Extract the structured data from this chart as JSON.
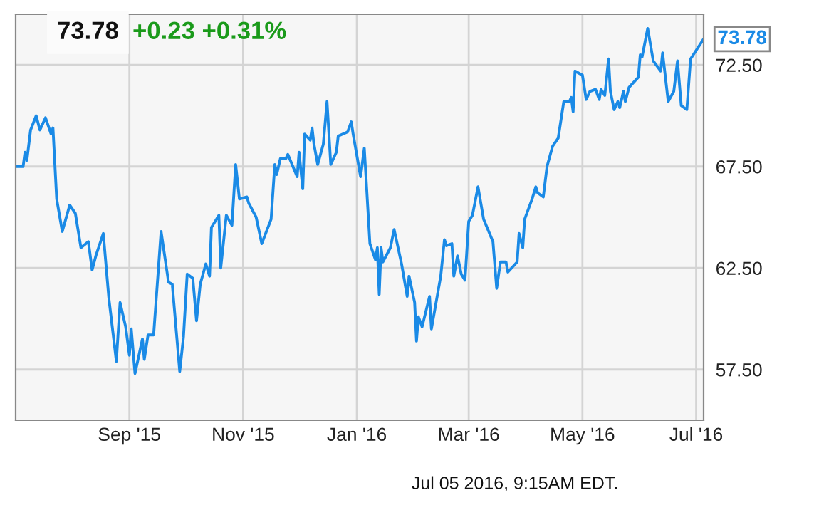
{
  "chart_data": {
    "type": "line",
    "title": "73.78",
    "subtitle": "+0.23 +0.31%",
    "x": [
      "2015-07-02",
      "2015-07-06",
      "2015-07-07",
      "2015-07-08",
      "2015-07-10",
      "2015-07-13",
      "2015-07-15",
      "2015-07-18",
      "2015-07-21",
      "2015-07-22",
      "2015-07-24",
      "2015-07-27",
      "2015-07-31",
      "2015-08-03",
      "2015-08-06",
      "2015-08-10",
      "2015-08-12",
      "2015-08-14",
      "2015-08-18",
      "2015-08-21",
      "2015-08-25",
      "2015-08-27",
      "2015-08-30",
      "2015-09-01",
      "2015-09-02",
      "2015-09-04",
      "2015-09-08",
      "2015-09-09",
      "2015-09-11",
      "2015-09-14",
      "2015-09-18",
      "2015-09-22",
      "2015-09-24",
      "2015-09-28",
      "2015-09-30",
      "2015-10-02",
      "2015-10-05",
      "2015-10-07",
      "2015-10-09",
      "2015-10-12",
      "2015-10-14",
      "2015-10-15",
      "2015-10-19",
      "2015-10-20",
      "2015-10-23",
      "2015-10-26",
      "2015-10-28",
      "2015-10-30",
      "2015-11-03",
      "2015-11-04",
      "2015-11-08",
      "2015-11-11",
      "2015-11-16",
      "2015-11-18",
      "2015-11-19",
      "2015-11-21",
      "2015-11-24",
      "2015-11-25",
      "2015-11-30",
      "2015-12-01",
      "2015-12-03",
      "2015-12-04",
      "2015-12-07",
      "2015-12-08",
      "2015-12-09",
      "2015-12-11",
      "2015-12-14",
      "2015-12-16",
      "2015-12-18",
      "2015-12-21",
      "2015-12-22",
      "2015-12-27",
      "2015-12-29",
      "2015-12-30",
      "2016-01-03",
      "2016-01-05",
      "2016-01-08",
      "2016-01-11",
      "2016-01-12",
      "2016-01-13",
      "2016-01-14",
      "2016-01-15",
      "2016-01-19",
      "2016-01-21",
      "2016-01-25",
      "2016-01-28",
      "2016-01-29",
      "2016-02-01",
      "2016-02-02",
      "2016-02-03",
      "2016-02-05",
      "2016-02-09",
      "2016-02-10",
      "2016-02-15",
      "2016-02-17",
      "2016-02-18",
      "2016-02-21",
      "2016-02-22",
      "2016-02-24",
      "2016-02-26",
      "2016-02-28",
      "2016-03-01",
      "2016-03-03",
      "2016-03-06",
      "2016-03-09",
      "2016-03-14",
      "2016-03-16",
      "2016-03-18",
      "2016-03-21",
      "2016-03-22",
      "2016-03-27",
      "2016-03-28",
      "2016-03-30",
      "2016-03-31",
      "2016-04-04",
      "2016-04-06",
      "2016-04-07",
      "2016-04-10",
      "2016-04-12",
      "2016-04-15",
      "2016-04-18",
      "2016-04-21",
      "2016-04-24",
      "2016-04-25",
      "2016-04-26",
      "2016-04-27",
      "2016-05-01",
      "2016-05-03",
      "2016-05-05",
      "2016-05-08",
      "2016-05-10",
      "2016-05-11",
      "2016-05-13",
      "2016-05-15",
      "2016-05-16",
      "2016-05-18",
      "2016-05-20",
      "2016-05-21",
      "2016-05-23",
      "2016-05-24",
      "2016-05-26",
      "2016-05-31",
      "2016-06-01",
      "2016-06-02",
      "2016-06-05",
      "2016-06-08",
      "2016-06-12",
      "2016-06-13",
      "2016-06-16",
      "2016-06-19",
      "2016-06-21",
      "2016-06-23",
      "2016-06-26",
      "2016-06-28",
      "2016-07-05"
    ],
    "series": [
      {
        "color": "#1a8ae6",
        "values": [
          67.5,
          67.5,
          68.2,
          67.8,
          69.3,
          70.0,
          69.3,
          69.9,
          69.1,
          69.4,
          65.9,
          64.3,
          65.6,
          65.2,
          63.5,
          63.8,
          62.4,
          63.1,
          64.2,
          61.0,
          57.9,
          60.8,
          59.6,
          58.2,
          59.5,
          57.3,
          59.0,
          58.0,
          59.2,
          59.2,
          64.3,
          61.8,
          61.7,
          57.4,
          59.1,
          62.2,
          62.0,
          59.9,
          61.7,
          62.7,
          62.1,
          64.5,
          65.1,
          62.5,
          65.1,
          64.6,
          67.6,
          65.9,
          66.0,
          65.7,
          65.0,
          63.7,
          64.9,
          67.6,
          67.1,
          67.9,
          67.9,
          68.1,
          67.0,
          68.2,
          66.4,
          69.1,
          68.8,
          69.4,
          68.6,
          67.6,
          68.6,
          70.7,
          67.6,
          68.2,
          69.0,
          69.2,
          69.7,
          69.1,
          67.0,
          68.4,
          63.7,
          62.9,
          63.5,
          61.2,
          63.5,
          62.8,
          63.5,
          64.4,
          62.7,
          61.1,
          62.1,
          60.8,
          58.9,
          60.1,
          59.6,
          61.1,
          59.5,
          62.1,
          63.9,
          63.6,
          63.7,
          62.1,
          63.1,
          62.2,
          61.9,
          64.8,
          65.1,
          66.5,
          64.9,
          63.8,
          61.5,
          62.8,
          62.8,
          62.3,
          62.8,
          64.2,
          63.5,
          64.9,
          65.9,
          66.5,
          66.2,
          66.0,
          67.5,
          68.5,
          68.9,
          70.7,
          70.7,
          70.9,
          70.2,
          72.2,
          72.0,
          70.8,
          71.2,
          71.3,
          70.8,
          71.3,
          71.0,
          72.8,
          71.2,
          70.3,
          70.7,
          70.4,
          71.2,
          70.7,
          71.4,
          71.9,
          73.0,
          72.9,
          74.3,
          72.7,
          72.2,
          73.1,
          70.7,
          71.2,
          72.7,
          70.5,
          70.3,
          72.8,
          73.78
        ]
      }
    ],
    "xlim": [
      "2015-07-02",
      "2016-07-05"
    ],
    "xticks": [
      {
        "value": "2015-09-01",
        "label": "Sep '15"
      },
      {
        "value": "2015-11-01",
        "label": "Nov '15"
      },
      {
        "value": "2016-01-01",
        "label": "Jan '16"
      },
      {
        "value": "2016-03-01",
        "label": "Mar '16"
      },
      {
        "value": "2016-05-01",
        "label": "May '16"
      },
      {
        "value": "2016-07-01",
        "label": "Jul '16"
      }
    ],
    "ylim": [
      55,
      75
    ],
    "yticks": [
      {
        "value": 57.5,
        "label": "57.50"
      },
      {
        "value": 62.5,
        "label": "62.50"
      },
      {
        "value": 67.5,
        "label": "67.50"
      },
      {
        "value": 72.5,
        "label": "72.50"
      }
    ],
    "grid": true,
    "annotations": [
      {
        "text": "73.78",
        "x": "2016-07-05",
        "y": 73.78
      },
      "Jul 05 2016, 9:15AM EDT."
    ]
  }
}
